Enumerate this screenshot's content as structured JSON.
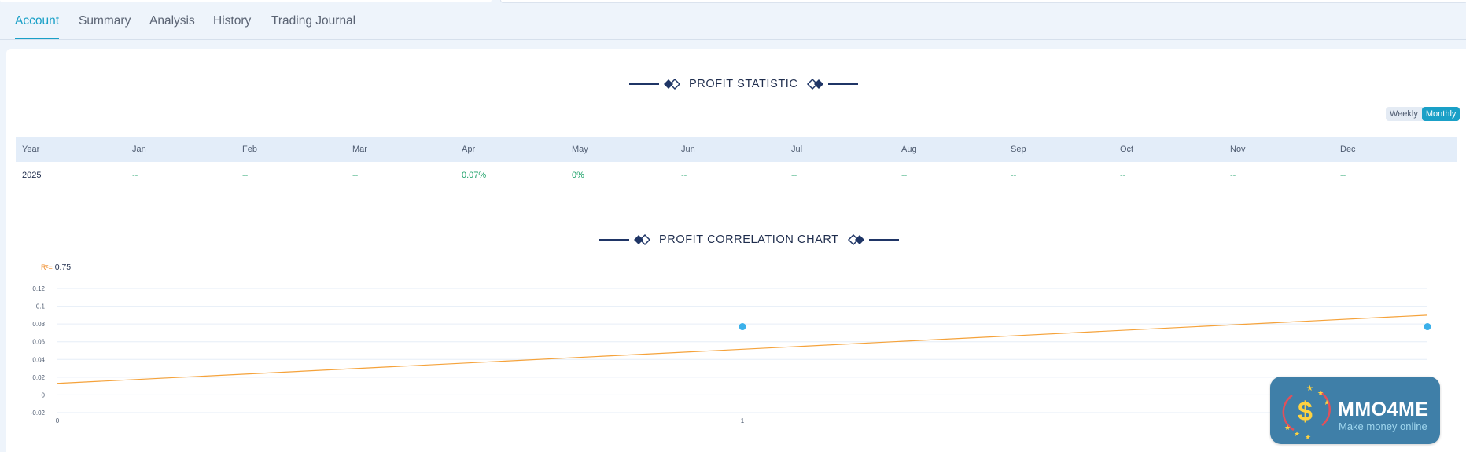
{
  "tabs": [
    {
      "label": "Account",
      "active": true
    },
    {
      "label": "Summary",
      "active": false
    },
    {
      "label": "Analysis",
      "active": false
    },
    {
      "label": "History",
      "active": false
    },
    {
      "label": "Trading Journal",
      "active": false
    }
  ],
  "profit_statistic": {
    "title": "PROFIT STATISTIC",
    "toggle": {
      "weekly": "Weekly",
      "monthly": "Monthly",
      "selected": "Monthly"
    },
    "columns": [
      "Year",
      "Jan",
      "Feb",
      "Mar",
      "Apr",
      "May",
      "Jun",
      "Jul",
      "Aug",
      "Sep",
      "Oct",
      "Nov",
      "Dec"
    ],
    "rows": [
      [
        "2025",
        "--",
        "--",
        "--",
        "0.07%",
        "0%",
        "--",
        "--",
        "--",
        "--",
        "--",
        "--",
        "--"
      ]
    ]
  },
  "correlation": {
    "title": "PROFIT CORRELATION CHART",
    "r2_label": "R²=",
    "r2_value": "0.75"
  },
  "chart_data": {
    "type": "scatter",
    "title": "PROFIT CORRELATION CHART",
    "x": [
      1,
      2
    ],
    "y": [
      0.077,
      0.077
    ],
    "trendline": {
      "x": [
        0,
        2
      ],
      "y": [
        0.013,
        0.09
      ]
    },
    "xticks": [
      "0",
      "1"
    ],
    "yticks": [
      "0.12",
      "0.1",
      "0.08",
      "0.06",
      "0.04",
      "0.02",
      "0",
      "-0.02"
    ],
    "ylim": [
      -0.02,
      0.12
    ],
    "xlim": [
      0,
      2
    ],
    "grid": true,
    "colors": {
      "points": "#3bb0ea",
      "trendline": "#f5a23a",
      "grid": "#e6eef7"
    }
  },
  "logo": {
    "brand": "MMO4ME",
    "tagline": "Make money online",
    "colors": {
      "bg": "#3f7fa8",
      "dollar": "#ffd23f",
      "stars": "#ffd23f"
    }
  },
  "icons": {
    "section_ornament": "diamond-ornament-icon"
  }
}
